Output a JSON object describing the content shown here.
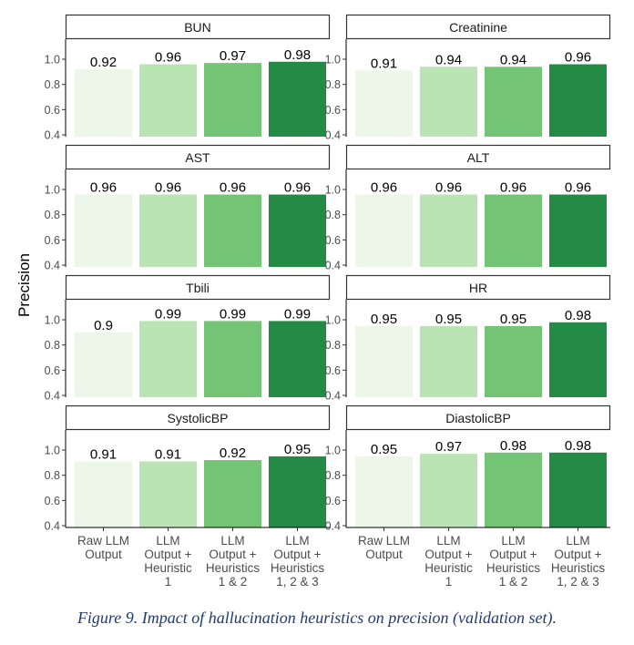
{
  "chart_data": {
    "type": "bar",
    "ylabel": "Precision",
    "ylim": [
      0.4,
      1.0
    ],
    "yticks": [
      "0.4",
      "0.6",
      "0.8",
      "1.0"
    ],
    "categories": [
      "Raw LLM Output",
      "LLM Output + Heuristic 1",
      "LLM Output + Heuristics 1 & 2",
      "LLM Output + Heuristics 1, 2 & 3"
    ],
    "category_label_lines": [
      [
        "Raw LLM",
        "Output"
      ],
      [
        "LLM",
        "Output +",
        "Heuristic",
        "1"
      ],
      [
        "LLM",
        "Output +",
        "Heuristics",
        "1 & 2"
      ],
      [
        "LLM",
        "Output +",
        "Heuristics",
        "1, 2 & 3"
      ]
    ],
    "bar_colors": [
      "#edf7e9",
      "#bae4b3",
      "#74c476",
      "#238b45"
    ],
    "panels": [
      {
        "title": "BUN",
        "values": [
          0.92,
          0.96,
          0.97,
          0.98
        ],
        "labels": [
          "0.92",
          "0.96",
          "0.97",
          "0.98"
        ]
      },
      {
        "title": "Creatinine",
        "values": [
          0.91,
          0.94,
          0.94,
          0.96
        ],
        "labels": [
          "0.91",
          "0.94",
          "0.94",
          "0.96"
        ]
      },
      {
        "title": "AST",
        "values": [
          0.96,
          0.96,
          0.96,
          0.96
        ],
        "labels": [
          "0.96",
          "0.96",
          "0.96",
          "0.96"
        ]
      },
      {
        "title": "ALT",
        "values": [
          0.96,
          0.96,
          0.96,
          0.96
        ],
        "labels": [
          "0.96",
          "0.96",
          "0.96",
          "0.96"
        ]
      },
      {
        "title": "Tbili",
        "values": [
          0.9,
          0.99,
          0.99,
          0.99
        ],
        "labels": [
          "0.9",
          "0.99",
          "0.99",
          "0.99"
        ]
      },
      {
        "title": "HR",
        "values": [
          0.95,
          0.95,
          0.95,
          0.98
        ],
        "labels": [
          "0.95",
          "0.95",
          "0.95",
          "0.98"
        ]
      },
      {
        "title": "SystolicBP",
        "values": [
          0.91,
          0.91,
          0.92,
          0.95
        ],
        "labels": [
          "0.91",
          "0.91",
          "0.92",
          "0.95"
        ]
      },
      {
        "title": "DiastolicBP",
        "values": [
          0.95,
          0.97,
          0.98,
          0.98
        ],
        "labels": [
          "0.95",
          "0.97",
          "0.98",
          "0.98"
        ]
      }
    ]
  },
  "caption": "Figure 9. Impact of hallucination heuristics on precision (validation set)."
}
